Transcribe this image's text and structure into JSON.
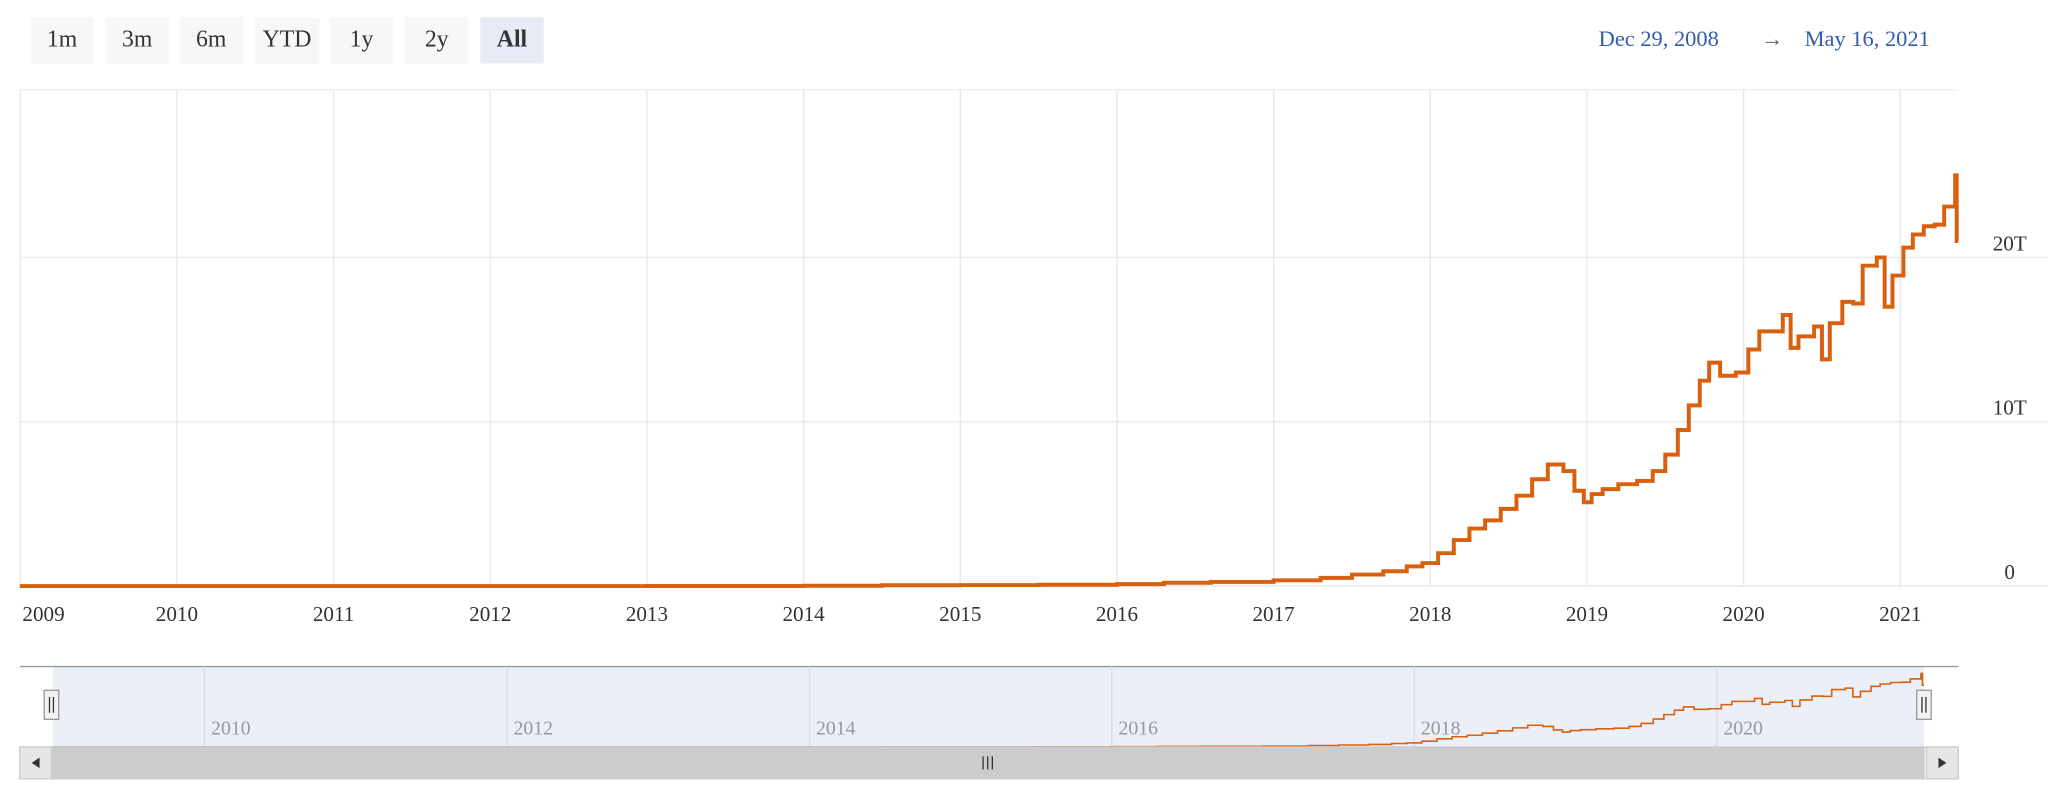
{
  "range_selector": {
    "buttons": [
      "1m",
      "3m",
      "6m",
      "YTD",
      "1y",
      "2y",
      "All"
    ],
    "selected": 6,
    "from": "Dec 29, 2008",
    "separator": "→",
    "to": "May 16, 2021"
  },
  "chart_data": {
    "type": "line",
    "step": true,
    "x": [
      2008.997,
      2010,
      2011,
      2012,
      2013,
      2014,
      2014.5,
      2015,
      2015.5,
      2016,
      2016.3,
      2016.6,
      2017,
      2017.3,
      2017.5,
      2017.7,
      2017.85,
      2017.95,
      2018.05,
      2018.15,
      2018.25,
      2018.35,
      2018.45,
      2018.55,
      2018.65,
      2018.75,
      2018.85,
      2018.92,
      2018.98,
      2019.03,
      2019.1,
      2019.2,
      2019.32,
      2019.42,
      2019.5,
      2019.58,
      2019.65,
      2019.72,
      2019.78,
      2019.85,
      2019.95,
      2020.03,
      2020.1,
      2020.18,
      2020.25,
      2020.3,
      2020.35,
      2020.45,
      2020.5,
      2020.55,
      2020.63,
      2020.7,
      2020.76,
      2020.85,
      2020.9,
      2020.95,
      2021.02,
      2021.08,
      2021.15,
      2021.22,
      2021.28,
      2021.35,
      2021.36
    ],
    "series": [
      {
        "color": "#d9600f",
        "values": [
          0,
          0,
          0,
          0,
          0.005,
          0.02,
          0.05,
          0.06,
          0.08,
          0.12,
          0.2,
          0.25,
          0.35,
          0.5,
          0.7,
          0.9,
          1.2,
          1.4,
          2.0,
          2.8,
          3.5,
          4.0,
          4.7,
          5.5,
          6.5,
          7.4,
          7.0,
          5.8,
          5.1,
          5.6,
          5.9,
          6.2,
          6.4,
          7.0,
          8.0,
          9.5,
          11.0,
          12.5,
          13.6,
          12.8,
          13.0,
          14.4,
          15.5,
          15.5,
          16.5,
          14.5,
          15.2,
          15.8,
          13.8,
          16.0,
          17.3,
          17.2,
          19.5,
          20.0,
          17.0,
          18.9,
          20.6,
          21.4,
          21.9,
          22.0,
          23.1,
          25.0,
          21.0
        ]
      }
    ],
    "xlim": [
      2008.997,
      2021.37
    ],
    "xticks": [
      2009,
      2010,
      2011,
      2012,
      2013,
      2014,
      2015,
      2016,
      2017,
      2018,
      2019,
      2020,
      2021
    ],
    "ylim": [
      0,
      30
    ],
    "yticks": [
      0,
      {
        "value": 10,
        "label": "10T"
      },
      {
        "value": 20,
        "label": "20T"
      }
    ],
    "grid": true,
    "navigator": {
      "xticks": [
        2010,
        2012,
        2014,
        2016,
        2018,
        2020
      ]
    }
  }
}
